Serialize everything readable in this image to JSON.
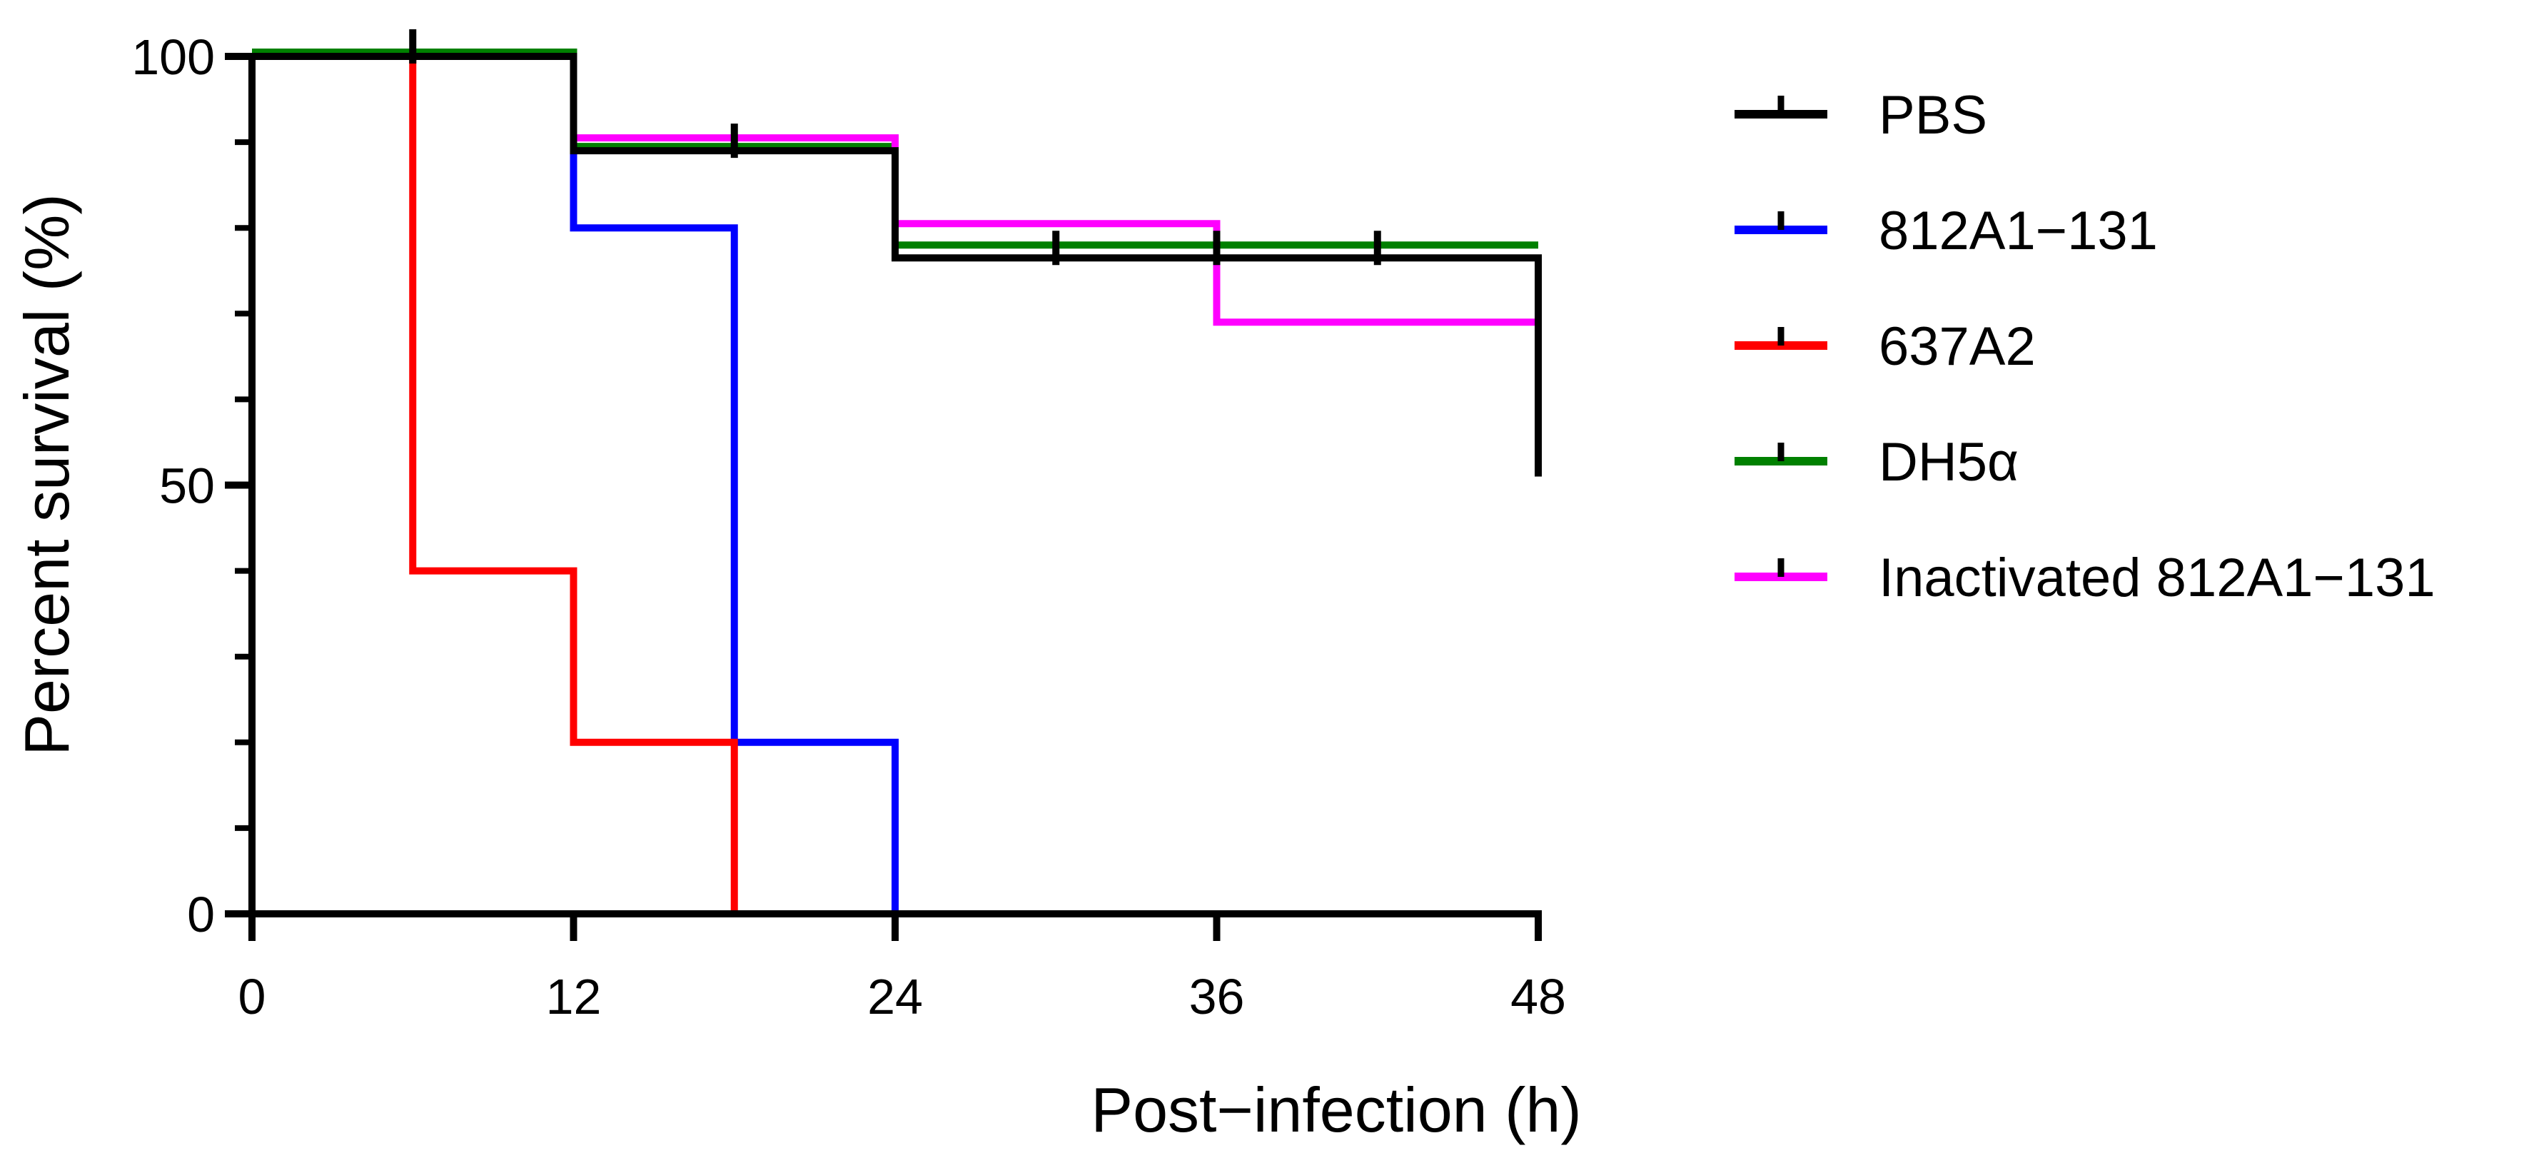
{
  "chart_data": {
    "type": "line",
    "subtype": "kaplan-meier-survival",
    "title": "",
    "xlabel": "Post−infection (h)",
    "ylabel": "Percent survival (%)",
    "xlim": [
      0,
      48
    ],
    "ylim": [
      0,
      100
    ],
    "xticks": [
      0,
      12,
      24,
      36,
      48
    ],
    "xtick_labels": [
      "0",
      "12",
      "24",
      "36",
      "48"
    ],
    "yticks": [
      0,
      50,
      100
    ],
    "ytick_labels": [
      "0",
      "50",
      "100"
    ],
    "yminor_ticks": [
      10,
      20,
      30,
      40,
      60,
      70,
      80,
      90
    ],
    "grid": false,
    "legend_position": "right",
    "series": [
      {
        "name": "PBS",
        "color": "#000000",
        "steps": [
          [
            0,
            100
          ],
          [
            12,
            89
          ],
          [
            24,
            76.5
          ],
          [
            48,
            51
          ]
        ],
        "censored": [
          [
            6,
            100
          ],
          [
            18,
            89
          ],
          [
            30,
            76.5
          ],
          [
            36,
            76.5
          ],
          [
            42,
            76.5
          ]
        ]
      },
      {
        "name": "812A1−131",
        "color": "#0000ff",
        "steps": [
          [
            0,
            100
          ],
          [
            12,
            80
          ],
          [
            18,
            20
          ],
          [
            24,
            0
          ]
        ],
        "censored": []
      },
      {
        "name": "637A2",
        "color": "#ff0000",
        "steps": [
          [
            0,
            100
          ],
          [
            6,
            40
          ],
          [
            12,
            20
          ],
          [
            18,
            0
          ]
        ],
        "censored": []
      },
      {
        "name": "DH5α",
        "color": "#008000",
        "steps": [
          [
            0,
            100.5
          ],
          [
            12,
            89.5
          ],
          [
            24,
            78
          ],
          [
            48,
            78
          ]
        ],
        "censored": []
      },
      {
        "name": "Inactivated 812A1−131",
        "color": "#ff00ff",
        "steps": [
          [
            0,
            100
          ],
          [
            12,
            90.5
          ],
          [
            24,
            80.5
          ],
          [
            36,
            69
          ],
          [
            48,
            69
          ]
        ],
        "censored": []
      }
    ]
  }
}
